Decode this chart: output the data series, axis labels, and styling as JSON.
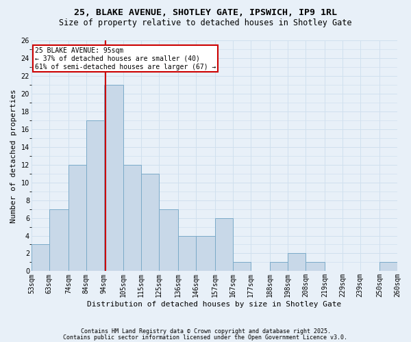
{
  "title_line1": "25, BLAKE AVENUE, SHOTLEY GATE, IPSWICH, IP9 1RL",
  "title_line2": "Size of property relative to detached houses in Shotley Gate",
  "xlabel": "Distribution of detached houses by size in Shotley Gate",
  "ylabel": "Number of detached properties",
  "bins": [
    53,
    63,
    74,
    84,
    94,
    105,
    115,
    125,
    136,
    146,
    157,
    167,
    177,
    188,
    198,
    208,
    219,
    229,
    239,
    250,
    260
  ],
  "bin_labels": [
    "53sqm",
    "63sqm",
    "74sqm",
    "84sqm",
    "94sqm",
    "105sqm",
    "115sqm",
    "125sqm",
    "136sqm",
    "146sqm",
    "157sqm",
    "167sqm",
    "177sqm",
    "188sqm",
    "198sqm",
    "208sqm",
    "219sqm",
    "229sqm",
    "239sqm",
    "250sqm",
    "260sqm"
  ],
  "values": [
    3,
    7,
    12,
    17,
    21,
    12,
    11,
    7,
    4,
    4,
    6,
    1,
    0,
    1,
    2,
    1,
    0,
    0,
    0,
    1
  ],
  "bar_color": "#c8d8e8",
  "bar_edge_color": "#7aaac8",
  "grid_color": "#d0e0ee",
  "property_line_x": 95,
  "property_line_color": "#cc0000",
  "annotation_text": "25 BLAKE AVENUE: 95sqm\n← 37% of detached houses are smaller (40)\n61% of semi-detached houses are larger (67) →",
  "annotation_box_color": "#ffffff",
  "annotation_box_edge_color": "#cc0000",
  "ylim": [
    0,
    26
  ],
  "yticks": [
    0,
    2,
    4,
    6,
    8,
    10,
    12,
    14,
    16,
    18,
    20,
    22,
    24,
    26
  ],
  "footnote1": "Contains HM Land Registry data © Crown copyright and database right 2025.",
  "footnote2": "Contains public sector information licensed under the Open Government Licence v3.0.",
  "bg_color": "#e8f0f8",
  "title1_fontsize": 9.5,
  "title2_fontsize": 8.5,
  "xlabel_fontsize": 8,
  "ylabel_fontsize": 8,
  "tick_fontsize": 7,
  "annotation_fontsize": 7,
  "footnote_fontsize": 6
}
